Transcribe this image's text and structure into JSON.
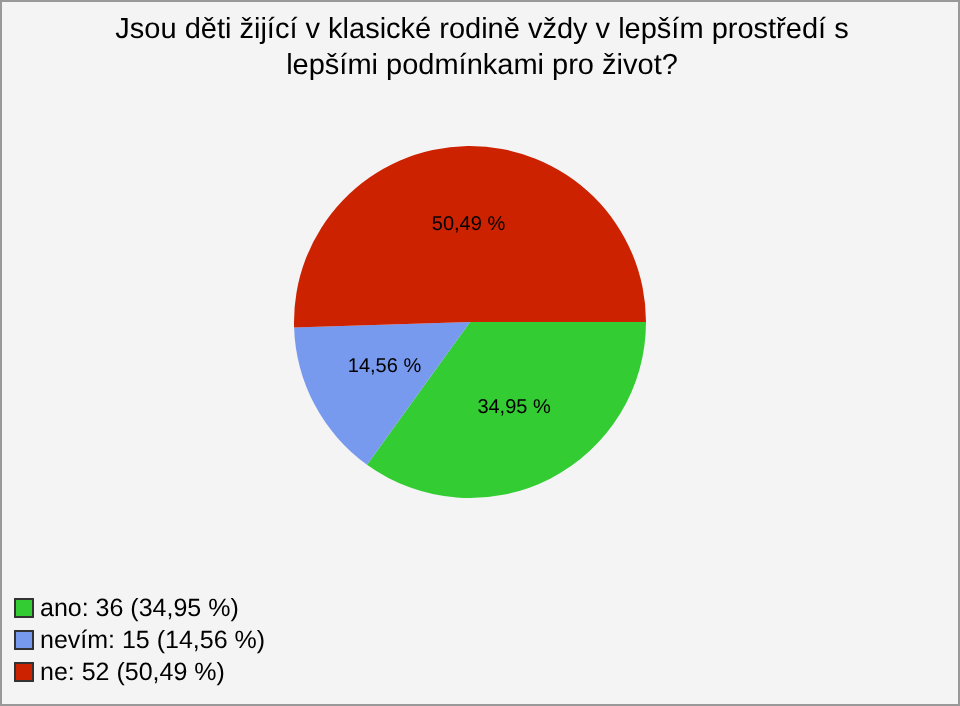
{
  "chart_data": {
    "type": "pie",
    "title": "Jsou děti žijící v klasické rodině vždy v lepším prostředí s lepšími podmínkami pro život?",
    "categories": [
      "ano: 36 (34,95 %)",
      "nevím: 15 (14,56 %)",
      "ne: 52 (50,49 %)"
    ],
    "values": [
      34.95,
      14.56,
      50.49
    ],
    "value_labels": [
      "34,95 %",
      "14,56 %",
      "50,49 %"
    ],
    "colors": [
      "#33cc33",
      "#7799ee",
      "#cc2200"
    ],
    "legend": "bottom left"
  }
}
